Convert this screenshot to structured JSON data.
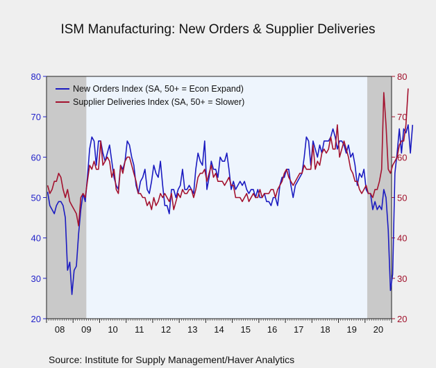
{
  "title": "ISM Manufacturing: New Orders & Supplier Deliveries",
  "source": "Source:   Institute for Supply Management/Haver Analytics",
  "colors": {
    "new_orders": "#1a1ac0",
    "supplier": "#a3112e",
    "plot_bg": "#eef5fd",
    "recession": "#c9c9c9",
    "left_axis": "#1f1fc8",
    "right_axis": "#a0102a"
  },
  "chart_data": {
    "type": "line",
    "x_start": "2008-01",
    "x_end": "2020-12",
    "x_ticks": [
      "08",
      "09",
      "10",
      "11",
      "12",
      "13",
      "14",
      "15",
      "16",
      "17",
      "18",
      "19",
      "20"
    ],
    "ylim": [
      20,
      80
    ],
    "yticks": [
      20,
      30,
      40,
      50,
      60,
      70,
      80
    ],
    "grid": false,
    "legend_position": "top-left",
    "recessions": [
      [
        "2008-01",
        "2009-06"
      ],
      [
        "2020-02",
        "2020-12"
      ]
    ],
    "series": [
      {
        "name": "New Orders Index (SA, 50+ = Econ Expand)",
        "axis": "left",
        "values": [
          51.4,
          48.0,
          47.0,
          46.0,
          48.0,
          49.0,
          49.0,
          48.0,
          45.0,
          32.0,
          34.0,
          26.0,
          32.0,
          33.0,
          41.0,
          47.0,
          51.0,
          49.0,
          55.0,
          62.0,
          65.0,
          64.0,
          58.0,
          64.0,
          64.0,
          61.0,
          59.0,
          61.0,
          63.0,
          59.0,
          55.0,
          53.0,
          52.0,
          58.0,
          57.0,
          59.0,
          64.0,
          63.0,
          60.0,
          58.0,
          53.0,
          51.0,
          54.0,
          55.0,
          57.0,
          52.0,
          51.0,
          54.0,
          58.0,
          56.0,
          55.0,
          59.0,
          53.0,
          48.0,
          48.0,
          46.0,
          52.0,
          52.0,
          50.0,
          52.0,
          53.0,
          57.0,
          52.0,
          52.0,
          53.0,
          52.0,
          51.0,
          57.0,
          61.0,
          59.0,
          58.0,
          64.0,
          52.0,
          55.0,
          59.0,
          57.0,
          57.0,
          55.0,
          60.0,
          59.0,
          59.0,
          61.0,
          57.0,
          52.0,
          54.0,
          52.0,
          53.0,
          54.0,
          53.0,
          54.0,
          52.0,
          51.0,
          52.0,
          52.0,
          50.0,
          52.0,
          50.0,
          50.0,
          51.0,
          49.0,
          49.0,
          48.0,
          50.0,
          50.0,
          48.0,
          53.0,
          55.0,
          55.0,
          57.0,
          57.0,
          53.0,
          50.0,
          53.0,
          54.0,
          55.0,
          56.0,
          60.0,
          65.0,
          64.0,
          58.0,
          64.0,
          62.0,
          60.0,
          63.0,
          61.0,
          64.0,
          64.0,
          64.0,
          65.0,
          67.0,
          65.0,
          62.0,
          64.0,
          64.0,
          63.0,
          61.0,
          63.0,
          60.0,
          61.0,
          58.0,
          53.0,
          56.0,
          55.0,
          57.0,
          52.0,
          51.0,
          51.0,
          47.0,
          49.0,
          47.0,
          48.0,
          47.0,
          52.0,
          50.0,
          42.0,
          27.0,
          31.0,
          56.0,
          61.0,
          67.0,
          61.0,
          67.0,
          66.0,
          68.0,
          61.0,
          68.0
        ],
        "color": "#1a1ac0"
      },
      {
        "name": "Supplier Deliveries Index (SA, 50+ = Slower)",
        "axis": "right",
        "values": [
          53.0,
          51.0,
          52.0,
          54.0,
          54.0,
          56.0,
          55.0,
          52.0,
          50.0,
          52.0,
          49.0,
          48.0,
          47.0,
          46.0,
          43.0,
          50.0,
          51.0,
          50.0,
          54.0,
          58.0,
          57.0,
          59.0,
          57.0,
          57.0,
          64.0,
          58.0,
          59.0,
          60.0,
          59.0,
          55.0,
          57.0,
          52.0,
          51.0,
          58.0,
          56.0,
          59.0,
          60.0,
          60.0,
          58.0,
          56.0,
          54.0,
          51.0,
          51.0,
          50.0,
          50.0,
          48.0,
          49.0,
          47.0,
          50.0,
          48.0,
          49.0,
          51.0,
          50.0,
          51.0,
          50.0,
          49.0,
          51.0,
          47.0,
          49.0,
          51.0,
          50.0,
          52.0,
          51.0,
          51.0,
          52.0,
          52.0,
          50.0,
          52.0,
          55.0,
          56.0,
          56.0,
          57.0,
          54.0,
          56.0,
          58.0,
          55.0,
          56.0,
          54.0,
          54.0,
          54.0,
          53.0,
          54.0,
          55.0,
          53.0,
          53.0,
          50.0,
          50.0,
          50.0,
          49.0,
          50.0,
          51.0,
          49.0,
          50.0,
          51.0,
          50.0,
          50.0,
          52.0,
          50.0,
          51.0,
          51.0,
          51.0,
          52.0,
          52.0,
          50.0,
          52.0,
          53.0,
          54.0,
          56.0,
          57.0,
          55.0,
          54.0,
          53.0,
          54.0,
          55.0,
          56.0,
          56.0,
          58.0,
          57.0,
          57.0,
          57.0,
          63.0,
          57.0,
          59.0,
          58.0,
          61.0,
          62.0,
          61.0,
          62.0,
          65.0,
          62.0,
          62.0,
          68.0,
          60.0,
          62.0,
          64.0,
          62.0,
          60.0,
          57.0,
          56.0,
          54.0,
          54.0,
          52.0,
          51.0,
          52.0,
          53.0,
          51.0,
          51.0,
          50.0,
          52.0,
          52.0,
          54.0,
          57.0,
          76.0,
          68.0,
          57.0,
          56.0,
          58.0,
          59.0,
          60.0,
          63.0,
          64.0,
          64.0,
          68.0,
          77.0
        ],
        "color": "#a3112e"
      }
    ]
  }
}
